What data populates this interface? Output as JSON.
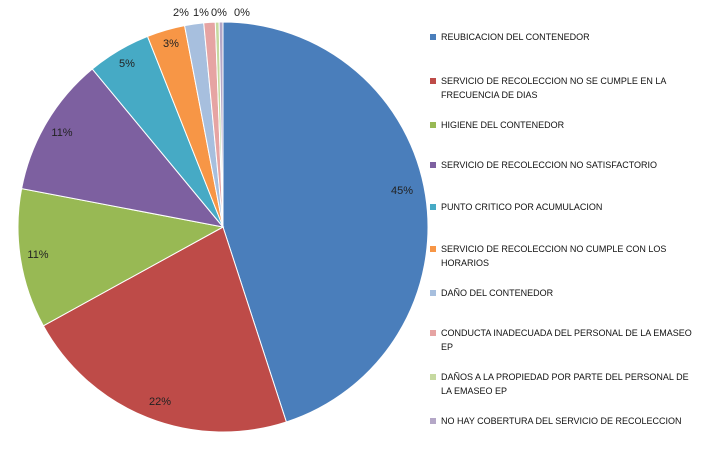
{
  "chart_data": {
    "type": "pie",
    "title": "",
    "slices": [
      {
        "label": "REUBICACION DEL CONTENEDOR",
        "value": 45,
        "display": "45%",
        "color": "#4a7ebb"
      },
      {
        "label": "SERVICIO DE RECOLECCION NO SE CUMPLE EN LA FRECUENCIA DE DIAS",
        "value": 22,
        "display": "22%",
        "color": "#be4b48"
      },
      {
        "label": "HIGIENE DEL CONTENEDOR",
        "value": 11,
        "display": "11%",
        "color": "#98b954"
      },
      {
        "label": "SERVICIO DE RECOLECCION NO SATISFACTORIO",
        "value": 11,
        "display": "11%",
        "color": "#7d60a0"
      },
      {
        "label": "PUNTO CRITICO POR ACUMULACION",
        "value": 5,
        "display": "5%",
        "color": "#46aac5"
      },
      {
        "label": "SERVICIO DE RECOLECCION NO CUMPLE CON LOS HORARIOS",
        "value": 3,
        "display": "3%",
        "color": "#f79646"
      },
      {
        "label": "DAÑO DEL CONTENEDOR",
        "value": 1.5,
        "display": "2%",
        "color": "#a7bfde"
      },
      {
        "label": "CONDUCTA INADECUADA DEL PERSONAL DE LA EMASEO EP",
        "value": 0.9,
        "display": "1%",
        "color": "#e6a4a3"
      },
      {
        "label": "DAÑOS A LA PROPIEDAD POR PARTE DEL PERSONAL DE LA EMASEO EP",
        "value": 0.3,
        "display": "0%",
        "color": "#c6d9a0"
      },
      {
        "label": "NO HAY COBERTURA DEL SERVICIO DE RECOLECCION",
        "value": 0.3,
        "display": "0%",
        "color": "#b4a7c7"
      }
    ],
    "legend_position": "right"
  }
}
